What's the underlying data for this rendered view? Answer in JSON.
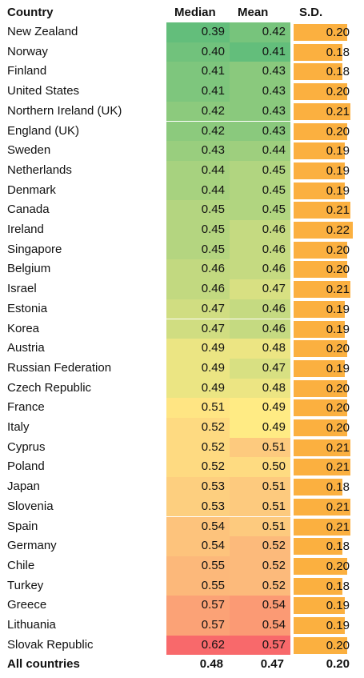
{
  "chart_data": {
    "type": "table",
    "columns": [
      "Country",
      "Median",
      "Mean",
      "S.D."
    ],
    "rows": [
      {
        "country": "New Zealand",
        "median": "0.39",
        "mean": "0.42",
        "sd": "0.20"
      },
      {
        "country": "Norway",
        "median": "0.40",
        "mean": "0.41",
        "sd": "0.18"
      },
      {
        "country": "Finland",
        "median": "0.41",
        "mean": "0.43",
        "sd": "0.18"
      },
      {
        "country": "United States",
        "median": "0.41",
        "mean": "0.43",
        "sd": "0.20"
      },
      {
        "country": "Northern Ireland (UK)",
        "median": "0.42",
        "mean": "0.43",
        "sd": "0.21"
      },
      {
        "country": "England (UK)",
        "median": "0.42",
        "mean": "0.43",
        "sd": "0.20"
      },
      {
        "country": "Sweden",
        "median": "0.43",
        "mean": "0.44",
        "sd": "0.19"
      },
      {
        "country": "Netherlands",
        "median": "0.44",
        "mean": "0.45",
        "sd": "0.19"
      },
      {
        "country": "Denmark",
        "median": "0.44",
        "mean": "0.45",
        "sd": "0.19"
      },
      {
        "country": "Canada",
        "median": "0.45",
        "mean": "0.45",
        "sd": "0.21"
      },
      {
        "country": "Ireland",
        "median": "0.45",
        "mean": "0.46",
        "sd": "0.22"
      },
      {
        "country": "Singapore",
        "median": "0.45",
        "mean": "0.46",
        "sd": "0.20"
      },
      {
        "country": "Belgium",
        "median": "0.46",
        "mean": "0.46",
        "sd": "0.20"
      },
      {
        "country": "Israel",
        "median": "0.46",
        "mean": "0.47",
        "sd": "0.21"
      },
      {
        "country": "Estonia",
        "median": "0.47",
        "mean": "0.46",
        "sd": "0.19"
      },
      {
        "country": "Korea",
        "median": "0.47",
        "mean": "0.46",
        "sd": "0.19"
      },
      {
        "country": "Austria",
        "median": "0.49",
        "mean": "0.48",
        "sd": "0.20"
      },
      {
        "country": "Russian Federation",
        "median": "0.49",
        "mean": "0.47",
        "sd": "0.19"
      },
      {
        "country": "Czech Republic",
        "median": "0.49",
        "mean": "0.48",
        "sd": "0.20"
      },
      {
        "country": "France",
        "median": "0.51",
        "mean": "0.49",
        "sd": "0.20"
      },
      {
        "country": "Italy",
        "median": "0.52",
        "mean": "0.49",
        "sd": "0.20"
      },
      {
        "country": "Cyprus",
        "median": "0.52",
        "mean": "0.51",
        "sd": "0.21"
      },
      {
        "country": "Poland",
        "median": "0.52",
        "mean": "0.50",
        "sd": "0.21"
      },
      {
        "country": "Japan",
        "median": "0.53",
        "mean": "0.51",
        "sd": "0.18"
      },
      {
        "country": "Slovenia",
        "median": "0.53",
        "mean": "0.51",
        "sd": "0.21"
      },
      {
        "country": "Spain",
        "median": "0.54",
        "mean": "0.51",
        "sd": "0.21"
      },
      {
        "country": "Germany",
        "median": "0.54",
        "mean": "0.52",
        "sd": "0.18"
      },
      {
        "country": "Chile",
        "median": "0.55",
        "mean": "0.52",
        "sd": "0.20"
      },
      {
        "country": "Turkey",
        "median": "0.55",
        "mean": "0.52",
        "sd": "0.18"
      },
      {
        "country": "Greece",
        "median": "0.57",
        "mean": "0.54",
        "sd": "0.19"
      },
      {
        "country": "Lithuania",
        "median": "0.57",
        "mean": "0.54",
        "sd": "0.19"
      },
      {
        "country": "Slovak Republic",
        "median": "0.62",
        "mean": "0.57",
        "sd": "0.20"
      }
    ],
    "total": {
      "country": "All countries",
      "median": "0.48",
      "mean": "0.47",
      "sd": "0.20"
    },
    "colors": {
      "scale_low": "#63BE7B",
      "scale_mid": "#FFEB84",
      "scale_high": "#F8696B",
      "bar": "#FBB040"
    }
  }
}
